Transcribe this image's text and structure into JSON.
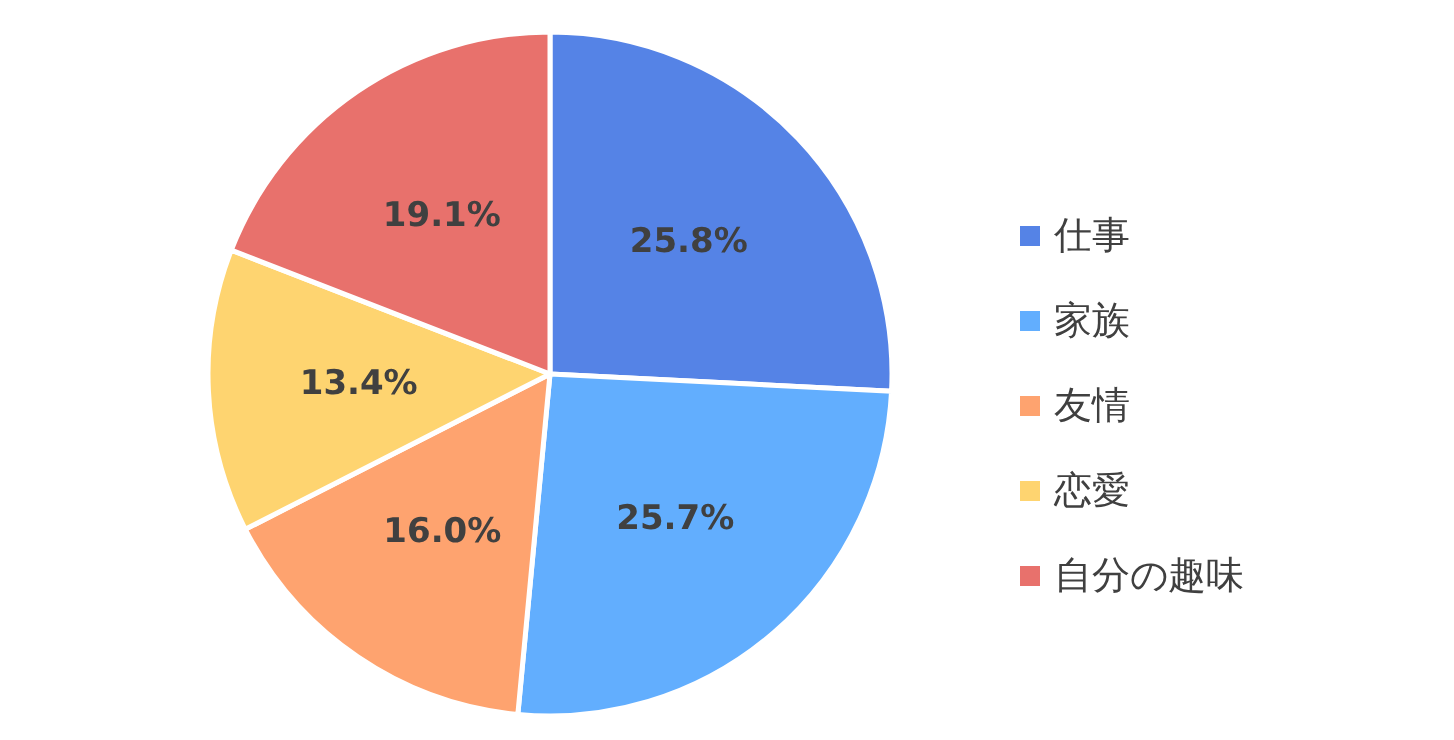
{
  "chart_data": {
    "type": "pie",
    "categories": [
      "仕事",
      "家族",
      "友情",
      "恋愛",
      "自分の趣味"
    ],
    "values": [
      25.8,
      25.7,
      16.0,
      13.4,
      19.1
    ],
    "colors": [
      "#5583e6",
      "#62aefe",
      "#fea36f",
      "#fed470",
      "#e8716c"
    ],
    "value_labels": [
      "25.8%",
      "25.7%",
      "16.0%",
      "13.4%",
      "19.1%"
    ],
    "legend": "right"
  }
}
